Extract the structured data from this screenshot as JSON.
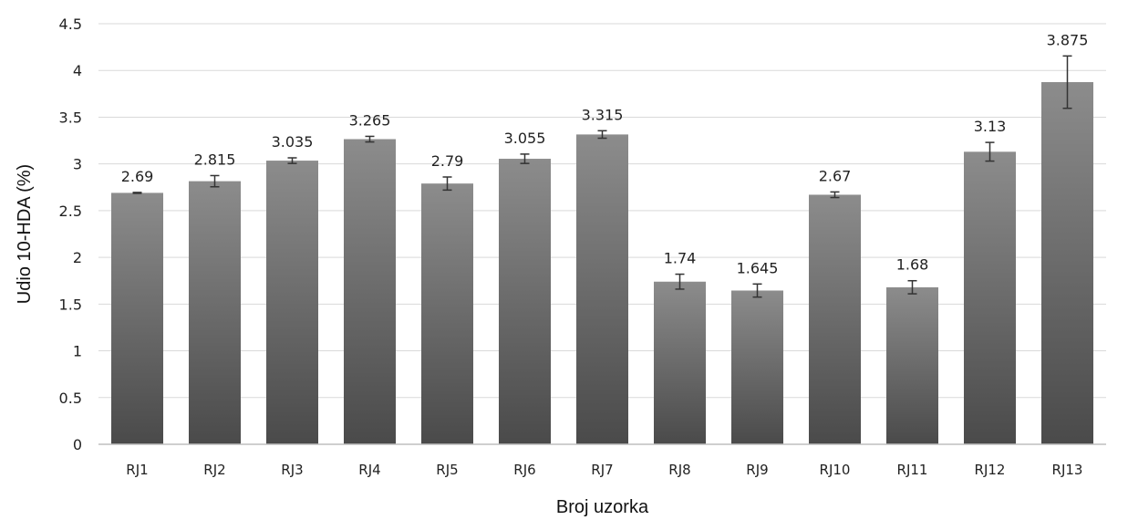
{
  "chart_data": {
    "type": "bar",
    "title": "",
    "xlabel": "Broj uzorka",
    "ylabel": "Udio 10-HDA (%)",
    "ylim": [
      0,
      4.5
    ],
    "ytick_step": 0.5,
    "yticks": [
      "0",
      "0.5",
      "1",
      "1.5",
      "2",
      "2.5",
      "3",
      "3.5",
      "4",
      "4.5"
    ],
    "grid": true,
    "categories": [
      "RJ1",
      "RJ2",
      "RJ3",
      "RJ4",
      "RJ5",
      "RJ6",
      "RJ7",
      "RJ8",
      "RJ9",
      "RJ10",
      "RJ11",
      "RJ12",
      "RJ13"
    ],
    "values": [
      2.69,
      2.815,
      3.035,
      3.265,
      2.79,
      3.055,
      3.315,
      1.74,
      1.645,
      2.67,
      1.68,
      3.13,
      3.875
    ],
    "data_labels": [
      "2.69",
      "2.815",
      "3.035",
      "3.265",
      "2.79",
      "3.055",
      "3.315",
      "1.74",
      "1.645",
      "2.67",
      "1.68",
      "3.13",
      "3.875"
    ],
    "errors": [
      0.005,
      0.06,
      0.03,
      0.03,
      0.07,
      0.05,
      0.04,
      0.08,
      0.07,
      0.03,
      0.07,
      0.1,
      0.28
    ],
    "colors": {
      "bar_light": "#8c8c8c",
      "bar_dark": "#4a4a4a",
      "grid": "#d9d9d9",
      "axis": "#bfbfbf",
      "error": "#333333"
    }
  }
}
